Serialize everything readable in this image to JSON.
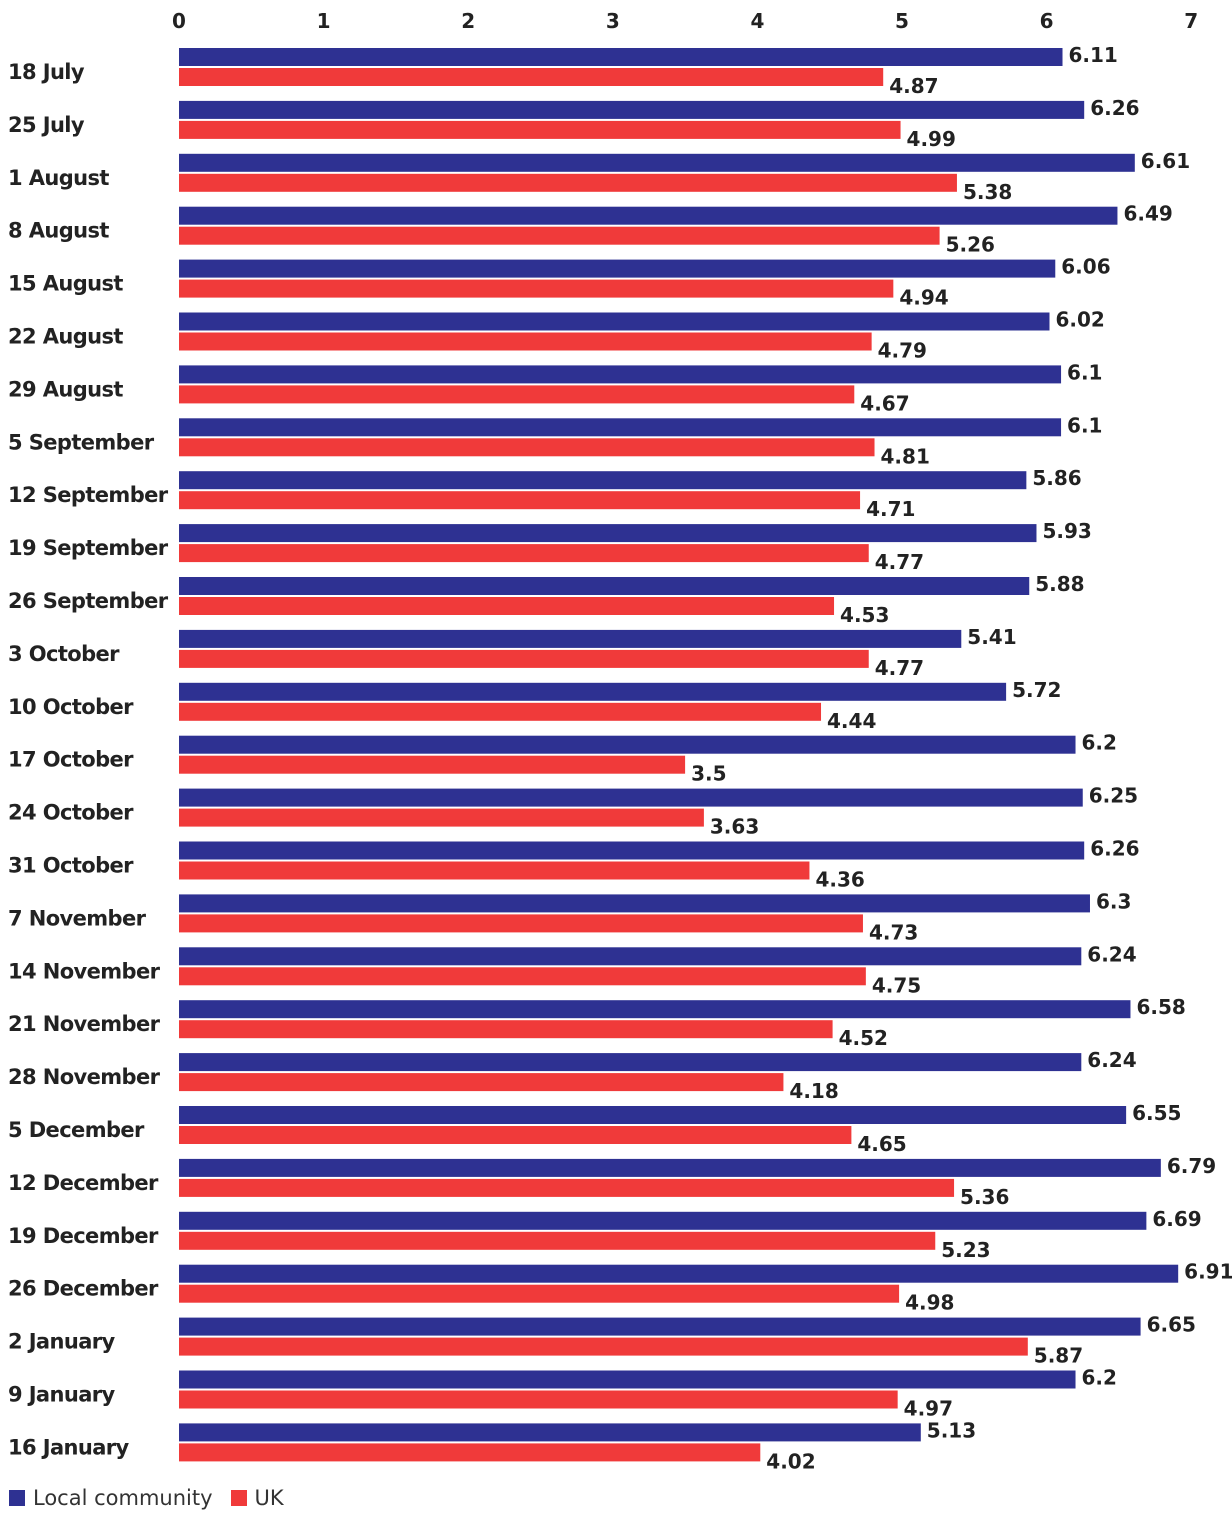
{
  "chart_data": {
    "type": "bar",
    "orientation": "horizontal",
    "categories": [
      "18 July",
      "25 July",
      "1 August",
      "8 August",
      "15 August",
      "22 August",
      "29 August",
      "5 September",
      "12 September",
      "19 September",
      "26 September",
      "3 October",
      "10 October",
      "17 October",
      "24 October",
      "31 October",
      "7 November",
      "14  November",
      "21 November",
      "28  November",
      "5 December",
      "12 December",
      "19 December",
      "26 December",
      "2 January",
      "9  January",
      "16  January"
    ],
    "series": [
      {
        "name": "Local community",
        "color": "#2e3192",
        "values": [
          6.11,
          6.26,
          6.61,
          6.49,
          6.06,
          6.02,
          6.1,
          6.1,
          5.86,
          5.93,
          5.88,
          5.41,
          5.72,
          6.2,
          6.25,
          6.26,
          6.3,
          6.24,
          6.58,
          6.24,
          6.55,
          6.79,
          6.69,
          6.91,
          6.65,
          6.2,
          5.13
        ]
      },
      {
        "name": "UK",
        "color": "#f03a3a",
        "values": [
          4.87,
          4.99,
          5.38,
          5.26,
          4.94,
          4.79,
          4.67,
          4.81,
          4.71,
          4.77,
          4.53,
          4.77,
          4.44,
          3.5,
          3.63,
          4.36,
          4.73,
          4.75,
          4.52,
          4.18,
          4.65,
          5.36,
          5.23,
          4.98,
          5.87,
          4.97,
          4.02
        ]
      }
    ],
    "x_ticks": [
      "0",
      "1",
      "2",
      "3",
      "4",
      "5",
      "6",
      "7"
    ],
    "xlim": [
      0,
      7
    ],
    "title": "",
    "xlabel": "",
    "ylabel": "",
    "grid": false,
    "x_axis_position": "top",
    "legend_position": "bottom-left"
  },
  "legend": {
    "items": [
      {
        "label": "Local community",
        "color": "#2e3192"
      },
      {
        "label": "UK",
        "color": "#f03a3a"
      }
    ]
  }
}
